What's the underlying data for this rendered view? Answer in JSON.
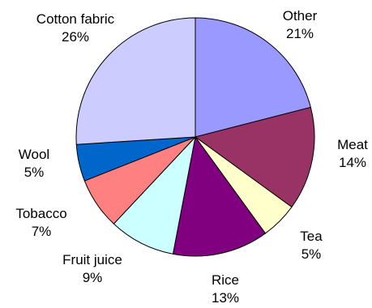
{
  "chart_data": {
    "type": "pie",
    "start_angle_deg": 0,
    "direction": "clockwise",
    "slices": [
      {
        "label": "Other",
        "percent_label": "21%",
        "value": 21,
        "color": "#9999ff"
      },
      {
        "label": "Meat",
        "percent_label": "14%",
        "value": 14,
        "color": "#993366"
      },
      {
        "label": "Tea",
        "percent_label": "5%",
        "value": 5,
        "color": "#ffffcc"
      },
      {
        "label": "Rice",
        "percent_label": "13%",
        "value": 13,
        "color": "#800080"
      },
      {
        "label": "Fruit juice",
        "percent_label": "9%",
        "value": 9,
        "color": "#ccffff"
      },
      {
        "label": "Tobacco",
        "percent_label": "7%",
        "value": 7,
        "color": "#ff8080"
      },
      {
        "label": "Wool",
        "percent_label": "5%",
        "value": 5,
        "color": "#0066cc"
      },
      {
        "label": "Cotton fabric",
        "percent_label": "26%",
        "value": 26,
        "color": "#ccccff"
      }
    ]
  }
}
